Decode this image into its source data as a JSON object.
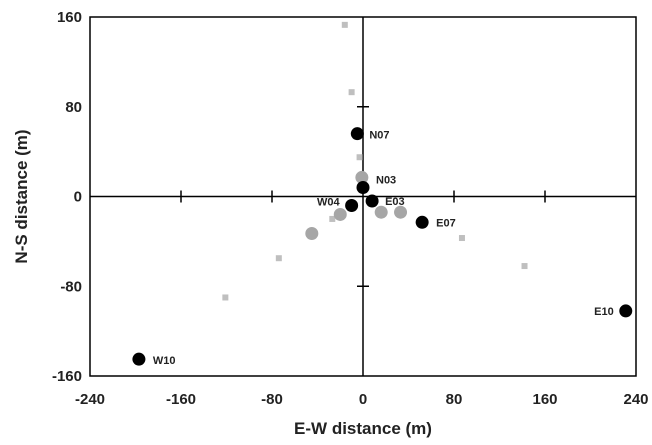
{
  "chart_data": {
    "type": "scatter",
    "title": "",
    "xlabel": "E-W distance (m)",
    "ylabel": "N-S distance (m)",
    "xlim": [
      -240,
      240
    ],
    "ylim": [
      -160,
      160
    ],
    "x_ticks": [
      -240,
      -160,
      -80,
      0,
      80,
      160,
      240
    ],
    "y_ticks": [
      -160,
      -80,
      0,
      80,
      160
    ],
    "grid": false,
    "crosshair_axes": true,
    "series": [
      {
        "marker": "circle-large",
        "color": "#000000",
        "points": [
          {
            "x": -197,
            "y": -145,
            "label": "W10"
          },
          {
            "x": -10,
            "y": -8,
            "label": "W04"
          },
          {
            "x": -5,
            "y": 56,
            "label": "N07"
          },
          {
            "x": 0,
            "y": 8,
            "label": "N03"
          },
          {
            "x": 8,
            "y": -4,
            "label": "E03"
          },
          {
            "x": 52,
            "y": -23,
            "label": "E07"
          },
          {
            "x": 231,
            "y": -102,
            "label": "E10"
          }
        ]
      },
      {
        "marker": "circle-medium",
        "color": "#a6a6a6",
        "points": [
          {
            "x": -45,
            "y": -33
          },
          {
            "x": -20,
            "y": -16
          },
          {
            "x": -1,
            "y": 17
          },
          {
            "x": 16,
            "y": -14
          },
          {
            "x": 33,
            "y": -14
          }
        ]
      },
      {
        "marker": "square-small",
        "color": "#bfbfbf",
        "points": [
          {
            "x": -16,
            "y": 153
          },
          {
            "x": -10,
            "y": 93
          },
          {
            "x": -3,
            "y": 35
          },
          {
            "x": -27,
            "y": -20
          },
          {
            "x": -74,
            "y": -55
          },
          {
            "x": -121,
            "y": -90
          },
          {
            "x": 87,
            "y": -37
          },
          {
            "x": 142,
            "y": -62
          }
        ]
      }
    ]
  }
}
